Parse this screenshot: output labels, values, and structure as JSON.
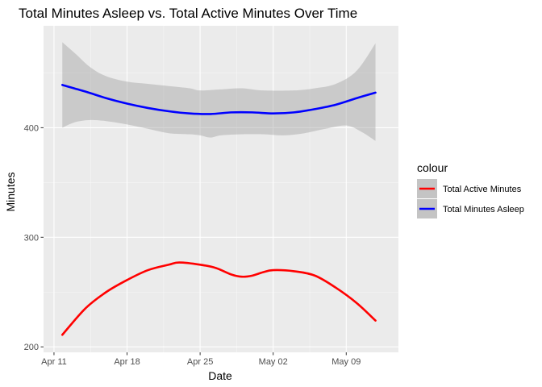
{
  "chart_data": {
    "type": "line",
    "title": "Total Minutes Asleep vs. Total Active Minutes Over Time",
    "xlabel": "Date",
    "ylabel": "Minutes",
    "x_ticks": [
      {
        "label": "Apr 11",
        "day": 0
      },
      {
        "label": "Apr 18",
        "day": 7
      },
      {
        "label": "Apr 25",
        "day": 14
      },
      {
        "label": "May 02",
        "day": 21
      },
      {
        "label": "May 09",
        "day": 28
      }
    ],
    "y_ticks": [
      200,
      300,
      400
    ],
    "xlim": [
      "2016-04-10",
      "2016-05-14"
    ],
    "ylim": [
      195,
      493
    ],
    "grid": true,
    "legend": {
      "title": "colour",
      "placement": "right"
    },
    "series": [
      {
        "name": "Total Active Minutes",
        "color": "#ff0000",
        "points": [
          [
            0.8,
            211
          ],
          [
            3,
            235
          ],
          [
            5,
            250
          ],
          [
            7,
            261
          ],
          [
            9,
            270
          ],
          [
            11,
            275
          ],
          [
            12,
            277
          ],
          [
            14,
            275
          ],
          [
            15.5,
            272
          ],
          [
            17,
            266
          ],
          [
            18,
            264
          ],
          [
            19,
            265
          ],
          [
            20,
            268
          ],
          [
            21,
            270
          ],
          [
            23,
            269
          ],
          [
            25,
            265
          ],
          [
            27,
            254
          ],
          [
            29,
            240
          ],
          [
            30.8,
            224
          ]
        ]
      },
      {
        "name": "Total Minutes Asleep",
        "color": "#0000ff",
        "points": [
          [
            0.8,
            439
          ],
          [
            3,
            433
          ],
          [
            5,
            427
          ],
          [
            7,
            422
          ],
          [
            9,
            418
          ],
          [
            11,
            415
          ],
          [
            13,
            413
          ],
          [
            15,
            412.5
          ],
          [
            17,
            414
          ],
          [
            19,
            414
          ],
          [
            21,
            413
          ],
          [
            23,
            414
          ],
          [
            25,
            417
          ],
          [
            27,
            421
          ],
          [
            29,
            427
          ],
          [
            30.8,
            432
          ]
        ],
        "band_upper": [
          [
            0.8,
            478
          ],
          [
            2,
            468
          ],
          [
            3.5,
            455
          ],
          [
            5,
            447
          ],
          [
            7,
            442
          ],
          [
            9,
            440
          ],
          [
            11,
            438
          ],
          [
            13,
            436
          ],
          [
            14,
            434
          ],
          [
            16,
            435
          ],
          [
            18,
            436
          ],
          [
            20,
            434
          ],
          [
            23,
            434
          ],
          [
            25,
            436
          ],
          [
            27,
            440
          ],
          [
            29,
            452
          ],
          [
            30.8,
            477
          ]
        ],
        "band_lower": [
          [
            0.8,
            400
          ],
          [
            2,
            405
          ],
          [
            3.5,
            407
          ],
          [
            5,
            406
          ],
          [
            7,
            403
          ],
          [
            9,
            399
          ],
          [
            11,
            395
          ],
          [
            13,
            394
          ],
          [
            14,
            393
          ],
          [
            15,
            391
          ],
          [
            16,
            393
          ],
          [
            18,
            394
          ],
          [
            20,
            394
          ],
          [
            22,
            393
          ],
          [
            24,
            395
          ],
          [
            26,
            399
          ],
          [
            28,
            402
          ],
          [
            29.5,
            396
          ],
          [
            30.8,
            388
          ]
        ]
      }
    ]
  }
}
